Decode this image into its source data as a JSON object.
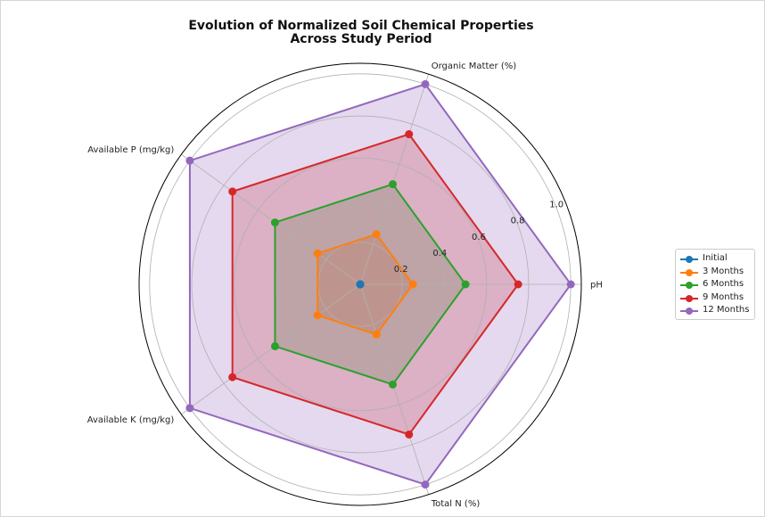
{
  "chart_data": {
    "type": "radar",
    "title_lines": [
      "Evolution of Normalized Soil Chemical Properties",
      "Across Study Period"
    ],
    "categories": [
      "pH",
      "Organic Matter (%)",
      "Available P (mg/kg)",
      "Available K (mg/kg)",
      "Total N (%)"
    ],
    "radial_ticks": [
      0.2,
      0.4,
      0.6,
      0.8,
      1.0
    ],
    "radial_tick_labels": [
      "0.2",
      "0.4",
      "0.6",
      "0.8",
      "1.0"
    ],
    "rlim": [
      0,
      1.05
    ],
    "grid": true,
    "legend_position": "right",
    "series": [
      {
        "name": "Initial",
        "color": "#1f77b4",
        "values": [
          0.0,
          0.0,
          0.0,
          0.0,
          0.0
        ]
      },
      {
        "name": "3 Months",
        "color": "#ff7f0e",
        "values": [
          0.25,
          0.25,
          0.25,
          0.25,
          0.25
        ]
      },
      {
        "name": "6 Months",
        "color": "#2ca02c",
        "values": [
          0.5,
          0.5,
          0.5,
          0.5,
          0.5
        ]
      },
      {
        "name": "9 Months",
        "color": "#d62728",
        "values": [
          0.75,
          0.75,
          0.75,
          0.75,
          0.75
        ]
      },
      {
        "name": "12 Months",
        "color": "#9467bd",
        "values": [
          1.0,
          1.0,
          1.0,
          1.0,
          1.0
        ]
      }
    ]
  }
}
